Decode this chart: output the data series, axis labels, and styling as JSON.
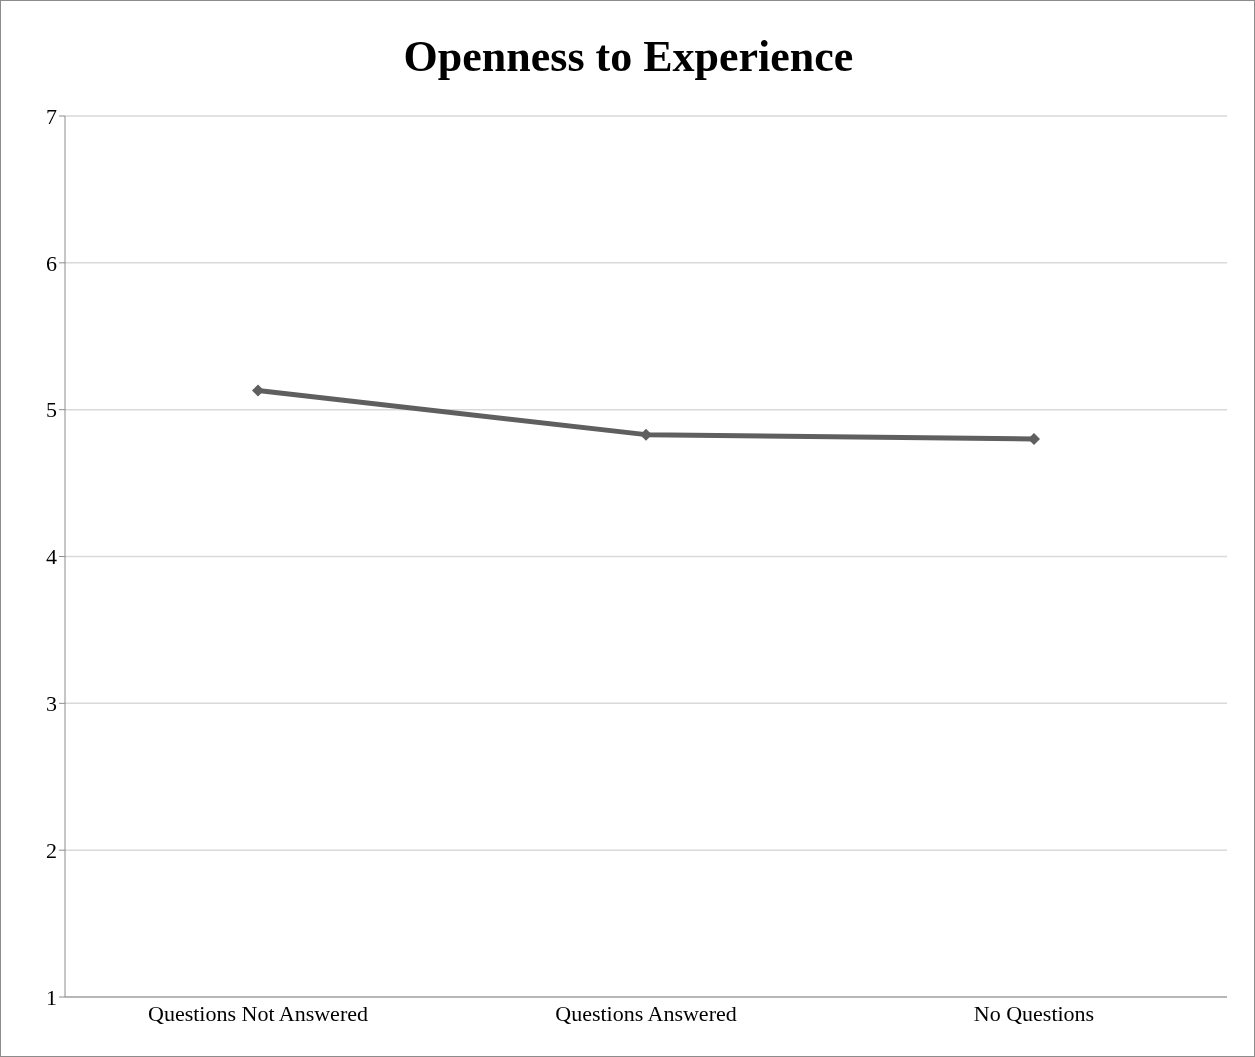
{
  "chart_data": {
    "type": "line",
    "title": "Openness to Experience",
    "categories": [
      "Questions Not Answered",
      "Questions Answered",
      "No Questions"
    ],
    "series": [
      {
        "color": "#5f5f5f",
        "values": [
          5.13,
          4.83,
          4.8
        ]
      }
    ],
    "ylim": [
      1,
      7
    ],
    "yticks": [
      1,
      2,
      3,
      4,
      5,
      6,
      7
    ],
    "grid": "y",
    "marker": "diamond",
    "line_style": "solid",
    "legend": false
  }
}
